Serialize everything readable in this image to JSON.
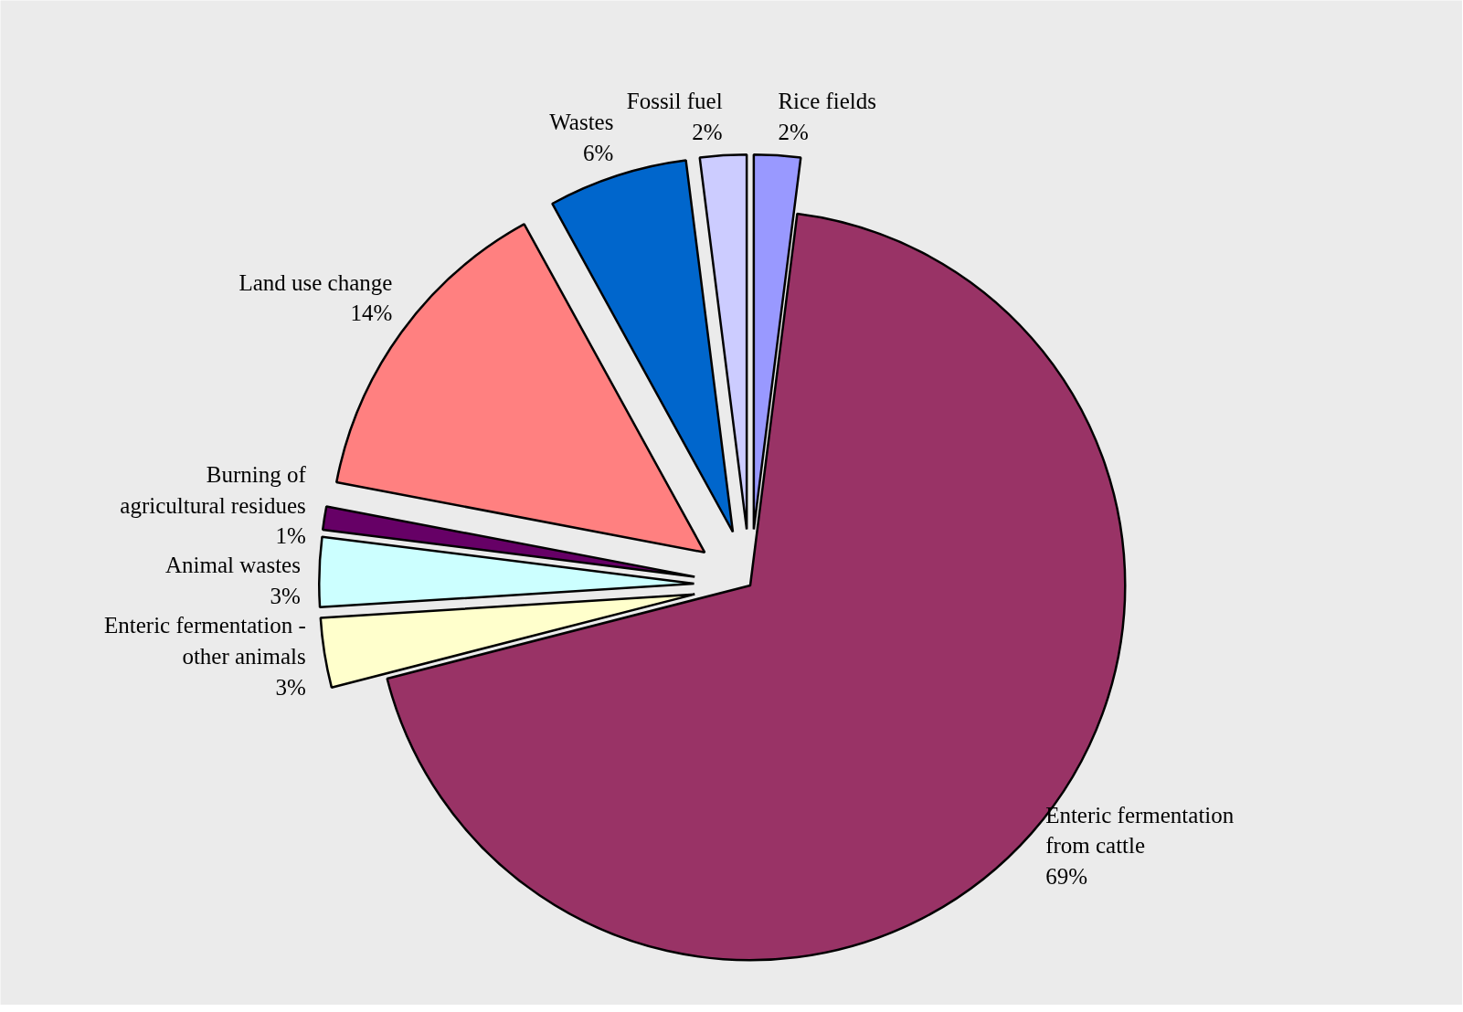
{
  "chart_data": {
    "type": "pie",
    "categories": [
      "Rice fields",
      "Enteric fermentation\nfrom cattle",
      "Enteric fermentation -\nother animals",
      "Animal wastes",
      "Burning of\nagricultural residues",
      "Land use change",
      "Wastes",
      "Fossil fuel"
    ],
    "values": [
      2,
      69,
      3,
      3,
      1,
      14,
      6,
      2
    ],
    "value_labels": [
      "2%",
      "69%",
      "3%",
      "3%",
      "1%",
      "14%",
      "6%",
      "2%"
    ],
    "colors": [
      "#9999ff",
      "#993366",
      "#ffffcc",
      "#ccffff",
      "#660066",
      "#ff8080",
      "#0066cc",
      "#ccccff"
    ]
  }
}
